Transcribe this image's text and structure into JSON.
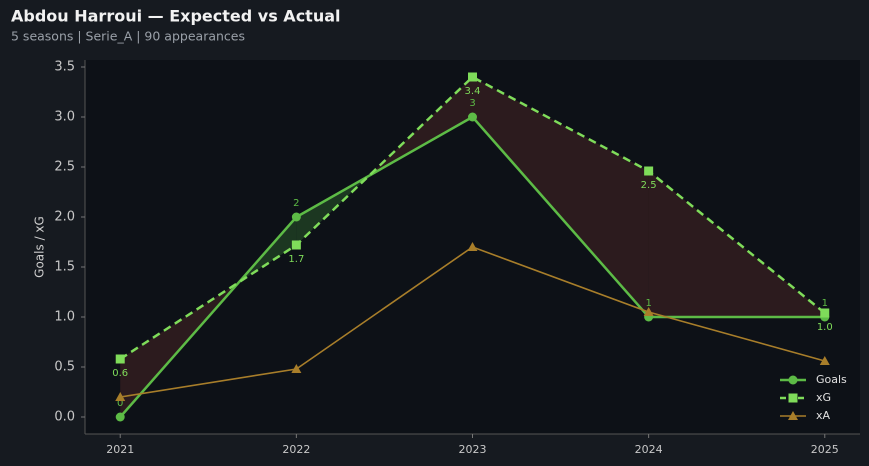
{
  "chart_data": {
    "type": "line",
    "title": "Abdou Harroui — Expected vs Actual",
    "subtitle": "5 seasons | Serie_A | 90 appearances",
    "y_label": "Goals / xG",
    "x": [
      2021,
      2022,
      2023,
      2024,
      2025
    ],
    "xlim": [
      2020.8,
      2025.2
    ],
    "xticks": [
      2021,
      2022,
      2023,
      2024,
      2025
    ],
    "ylim": [
      -0.17,
      3.57
    ],
    "yticks": [
      0.0,
      0.5,
      1.0,
      1.5,
      2.0,
      2.5,
      3.0,
      3.5
    ],
    "ytick_labels": [
      "0.0",
      "0.5",
      "1.0",
      "1.5",
      "2.0",
      "2.5",
      "3.0",
      "3.5"
    ],
    "legend": "lower right",
    "shade_colors": {
      "over": "#2e1c1f",
      "under": "#1d3a22"
    },
    "series": [
      {
        "name": "Goals",
        "color": "#5dbb46",
        "marker": "circle",
        "dash": false,
        "width": 2.5,
        "label_side": "above",
        "values": [
          0,
          2,
          3,
          1,
          1
        ]
      },
      {
        "name": "xG",
        "color": "#7fdc5a",
        "marker": "square",
        "dash": true,
        "width": 2.5,
        "label_side": "below",
        "values": [
          0.58,
          1.72,
          3.4,
          2.46,
          1.04
        ],
        "value_labels": [
          "0.6",
          "1.7",
          "3.4",
          "2.5",
          "1.0"
        ]
      },
      {
        "name": "xA",
        "color": "#a87e2a",
        "marker": "triangle",
        "dash": false,
        "width": 1.6,
        "values": [
          0.2,
          0.48,
          1.7,
          1.05,
          0.56
        ]
      }
    ]
  }
}
